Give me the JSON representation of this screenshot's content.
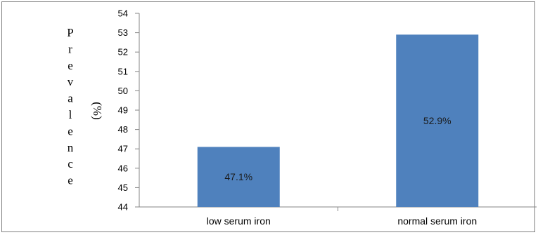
{
  "chart_data": {
    "type": "bar",
    "title": "",
    "xlabel": "",
    "ylabel": "Prevalence",
    "yunit": "(%)",
    "categories": [
      "low serum iron",
      "normal serum iron"
    ],
    "values": [
      47.1,
      52.9
    ],
    "data_labels": [
      "47.1%",
      "52.9%"
    ],
    "ylim": [
      44,
      54
    ],
    "yticks": [
      44,
      45,
      46,
      47,
      48,
      49,
      50,
      51,
      52,
      53,
      54
    ],
    "grid": false,
    "legend": "none",
    "bar_color": "#4f81bd"
  }
}
